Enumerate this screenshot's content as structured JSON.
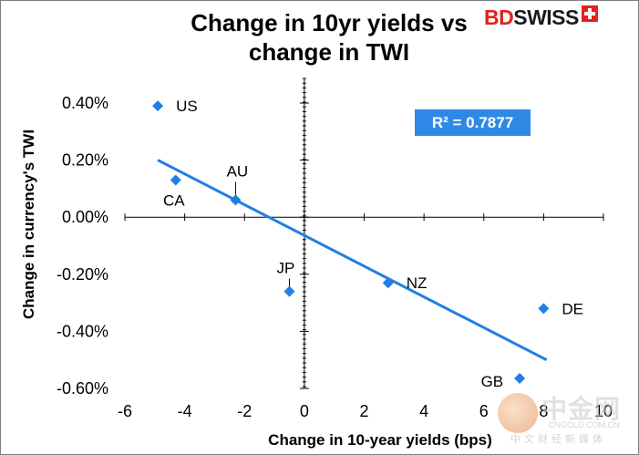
{
  "header": {
    "title_line1": "Change in 10yr yields vs",
    "title_line2": "change in TWI",
    "logo_part1": "BD",
    "logo_part2": "SWISS"
  },
  "r2_label": "R² = 0.7877",
  "watermark": {
    "name": "中金网",
    "site": "CNGOLD.COM.CN",
    "sub": "中文财经新媒体"
  },
  "chart_data": {
    "type": "scatter",
    "title": "Change in 10yr yields vs change in TWI",
    "xlabel": "Change in 10-year yields (bps)",
    "ylabel": "Change in currency's  TWI",
    "xlim": [
      -6,
      10
    ],
    "ylim": [
      -0.6,
      0.4
    ],
    "x_ticks": [
      -6,
      -4,
      -2,
      0,
      2,
      4,
      6,
      8,
      10
    ],
    "x_tick_labels": [
      "-6",
      "-4",
      "-2",
      "0",
      "2",
      "4",
      "6",
      "8",
      "10"
    ],
    "y_ticks": [
      0.4,
      0.2,
      0.0,
      -0.2,
      -0.4,
      -0.6
    ],
    "y_tick_labels": [
      "0.40%",
      "0.20%",
      "0.00%",
      "-0.20%",
      "-0.40%",
      "-0.60%"
    ],
    "grid": false,
    "marker_color": "#1f7fe6",
    "trendline_color": "#1f7fe6",
    "points": [
      {
        "label": "US",
        "x": -4.9,
        "y": 0.39
      },
      {
        "label": "CA",
        "x": -4.3,
        "y": 0.13
      },
      {
        "label": "AU",
        "x": -2.3,
        "y": 0.06
      },
      {
        "label": "JP",
        "x": -0.5,
        "y": -0.26
      },
      {
        "label": "NZ",
        "x": 2.8,
        "y": -0.23
      },
      {
        "label": "DE",
        "x": 8.0,
        "y": -0.32
      },
      {
        "label": "GB",
        "x": 7.2,
        "y": -0.565
      }
    ],
    "trendline": {
      "x": [
        -4.9,
        8.1
      ],
      "y": [
        0.2,
        -0.5
      ]
    },
    "r_squared": "R² = 0.7877"
  }
}
